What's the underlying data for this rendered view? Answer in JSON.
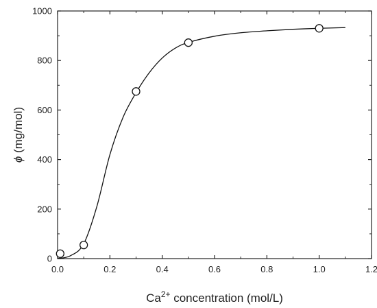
{
  "chart_data": {
    "type": "scatter",
    "title": "",
    "xlabel": {
      "prefix": "Ca",
      "superscript": "2+",
      "suffix": " concentration (mol/L)"
    },
    "ylabel": {
      "symbol": "ϕ",
      "text": " (mg/mol)"
    },
    "xlim": [
      0.0,
      1.2
    ],
    "ylim": [
      0,
      1000
    ],
    "xticks": [
      0.0,
      0.2,
      0.4,
      0.6,
      0.8,
      1.0,
      1.2
    ],
    "xtick_labels": [
      "0.0",
      "0.2",
      "0.4",
      "0.6",
      "0.8",
      "1.0",
      "1.2"
    ],
    "yticks": [
      0,
      200,
      400,
      600,
      800,
      1000
    ],
    "ytick_labels": [
      "0",
      "200",
      "400",
      "600",
      "800",
      "1000"
    ],
    "grid": false,
    "legend": "none",
    "series": [
      {
        "kind": "scatter",
        "marker": "open-circle",
        "x": [
          0.01,
          0.1,
          0.3,
          0.5,
          1.0
        ],
        "y": [
          20,
          55,
          675,
          872,
          930
        ]
      },
      {
        "kind": "fit-line",
        "x": [
          0.0,
          0.05,
          0.1,
          0.15,
          0.2,
          0.25,
          0.3,
          0.35,
          0.4,
          0.45,
          0.5,
          0.6,
          0.7,
          0.8,
          0.9,
          1.0,
          1.1
        ],
        "y": [
          0,
          12,
          60,
          210,
          420,
          570,
          670,
          750,
          810,
          850,
          873,
          898,
          912,
          920,
          926,
          930,
          933
        ]
      }
    ],
    "colors": {
      "axis": "#222222",
      "line": "#111111",
      "marker_fill": "#ffffff",
      "marker_stroke": "#111111"
    }
  }
}
